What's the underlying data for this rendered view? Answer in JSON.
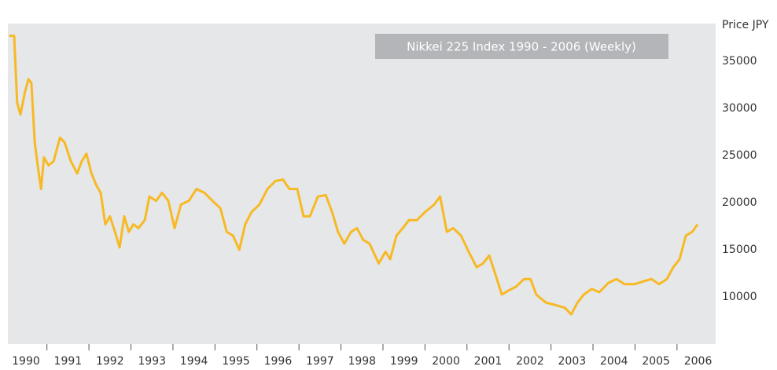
{
  "chart_data": {
    "type": "line",
    "title": "Nikkei 225 Index 1990 - 2006 (Weekly)",
    "y_label": "Price JPY",
    "x": [
      1990.1,
      1990.22,
      1990.29,
      1990.37,
      1990.48,
      1990.56,
      1990.63,
      1990.71,
      1990.78,
      1990.86,
      1990.93,
      1991.04,
      1991.16,
      1991.31,
      1991.42,
      1991.57,
      1991.72,
      1991.83,
      1991.94,
      1992.06,
      1992.17,
      1992.28,
      1992.39,
      1992.5,
      1992.62,
      1992.73,
      1992.84,
      1992.95,
      1993.06,
      1993.18,
      1993.33,
      1993.44,
      1993.6,
      1993.74,
      1993.89,
      1994.04,
      1994.19,
      1994.38,
      1994.56,
      1994.75,
      1994.94,
      1995.13,
      1995.28,
      1995.43,
      1995.58,
      1995.72,
      1995.87,
      1996.06,
      1996.25,
      1996.44,
      1996.62,
      1996.77,
      1996.96,
      1997.11,
      1997.26,
      1997.45,
      1997.64,
      1997.79,
      1997.93,
      1998.08,
      1998.24,
      1998.38,
      1998.53,
      1998.68,
      1998.9,
      1999.06,
      1999.17,
      1999.32,
      1999.47,
      1999.62,
      1999.81,
      2000.0,
      2000.22,
      2000.36,
      2000.52,
      2000.67,
      2000.86,
      2001.04,
      2001.23,
      2001.38,
      2001.53,
      2001.68,
      2001.83,
      2001.98,
      2002.17,
      2002.36,
      2002.51,
      2002.65,
      2002.88,
      2003.1,
      2003.33,
      2003.48,
      2003.63,
      2003.78,
      2003.97,
      2004.15,
      2004.37,
      2004.56,
      2004.75,
      2004.98,
      2005.2,
      2005.39,
      2005.57,
      2005.76,
      2005.91,
      2006.06,
      2006.21,
      2006.36,
      2006.49
    ],
    "series": [
      {
        "name": "Nikkei 225",
        "color": "#f7b924",
        "values": [
          37700,
          37700,
          30600,
          29350,
          31800,
          33100,
          32700,
          26400,
          23950,
          21450,
          24800,
          23950,
          24400,
          26900,
          26400,
          24400,
          23100,
          24400,
          25200,
          23100,
          21900,
          21050,
          17700,
          18550,
          16900,
          15250,
          18550,
          16900,
          17700,
          17300,
          18150,
          20650,
          20200,
          21050,
          20200,
          17300,
          19800,
          20200,
          21450,
          21050,
          20200,
          19400,
          16900,
          16500,
          15000,
          17700,
          19000,
          19800,
          21450,
          22300,
          22450,
          21450,
          21450,
          18550,
          18550,
          20650,
          20800,
          19000,
          16900,
          15650,
          16900,
          17300,
          16050,
          15650,
          13550,
          14800,
          14000,
          16500,
          17300,
          18150,
          18150,
          19000,
          19800,
          20650,
          16900,
          17300,
          16500,
          14800,
          13150,
          13550,
          14400,
          12350,
          10250,
          10650,
          11100,
          11900,
          11900,
          10250,
          9400,
          9150,
          8850,
          8150,
          9400,
          10250,
          10850,
          10500,
          11500,
          11900,
          11350,
          11350,
          11650,
          11900,
          11350,
          11900,
          13150,
          14000,
          16500,
          16900,
          17700
        ]
      }
    ],
    "xlim": [
      1990.07,
      2006.92
    ],
    "ylim": [
      5000,
      39000
    ],
    "yticks": [
      10000,
      15000,
      20000,
      25000,
      30000,
      35000
    ],
    "xticks": [
      {
        "value": 1990.5,
        "label": "1990"
      },
      {
        "value": 1991.5,
        "label": "1991"
      },
      {
        "value": 1992.5,
        "label": "1992"
      },
      {
        "value": 1993.5,
        "label": "1993"
      },
      {
        "value": 1994.5,
        "label": "1994"
      },
      {
        "value": 1995.5,
        "label": "1995"
      },
      {
        "value": 1996.5,
        "label": "1996"
      },
      {
        "value": 1997.5,
        "label": "1997"
      },
      {
        "value": 1998.5,
        "label": "1998"
      },
      {
        "value": 1999.5,
        "label": "1999"
      },
      {
        "value": 2000.5,
        "label": "2000"
      },
      {
        "value": 2001.5,
        "label": "2001"
      },
      {
        "value": 2002.5,
        "label": "2002"
      },
      {
        "value": 2003.5,
        "label": "2003"
      },
      {
        "value": 2004.5,
        "label": "2004"
      },
      {
        "value": 2005.5,
        "label": "2005"
      },
      {
        "value": 2006.5,
        "label": "2006"
      }
    ],
    "grid": false
  }
}
